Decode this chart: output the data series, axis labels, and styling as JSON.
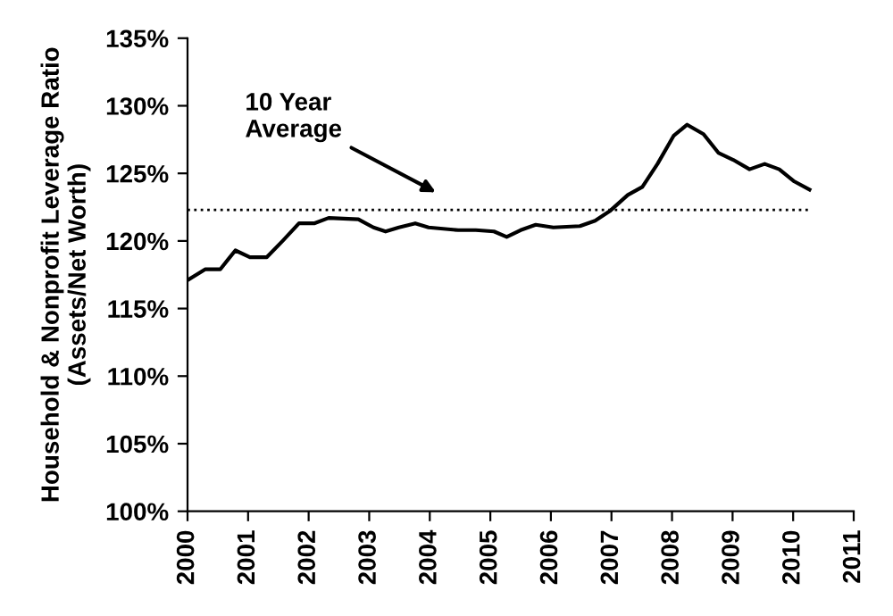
{
  "chart_data": {
    "type": "line",
    "ylabel": "Household & Nonprofit Leverage Ratio\n(Assets/Net Worth)",
    "x": [
      2000.0,
      2000.29,
      2000.54,
      2000.79,
      2001.03,
      2001.31,
      2001.57,
      2001.84,
      2002.09,
      2002.33,
      2002.82,
      2003.07,
      2003.27,
      2003.49,
      2003.76,
      2003.98,
      2004.47,
      2004.76,
      2005.06,
      2005.27,
      2005.5,
      2005.75,
      2006.04,
      2006.48,
      2006.73,
      2006.97,
      2007.27,
      2007.51,
      2007.76,
      2008.03,
      2008.25,
      2008.52,
      2008.77,
      2009.01,
      2009.28,
      2009.53,
      2009.77,
      2010.02,
      2010.27
    ],
    "series": [
      {
        "color": "#000000",
        "values": [
          117.1,
          117.9,
          117.9,
          119.3,
          118.8,
          118.8,
          120.0,
          121.3,
          121.3,
          121.7,
          121.6,
          121.0,
          120.7,
          121.0,
          121.3,
          121.0,
          120.8,
          120.8,
          120.7,
          120.3,
          120.8,
          121.2,
          121.0,
          121.1,
          121.5,
          122.2,
          123.4,
          124.0,
          125.7,
          127.8,
          128.6,
          127.9,
          126.5,
          126.0,
          125.3,
          125.7,
          125.3,
          124.4,
          123.8
        ]
      }
    ],
    "xlim": [
      2000,
      2011
    ],
    "xticks": [
      2000,
      2001,
      2002,
      2003,
      2004,
      2005,
      2006,
      2007,
      2008,
      2009,
      2010,
      2011
    ],
    "ylim": [
      100,
      135
    ],
    "yticks": [
      {
        "value": 100,
        "label": "100%"
      },
      {
        "value": 105,
        "label": "105%"
      },
      {
        "value": 110,
        "label": "110%"
      },
      {
        "value": 115,
        "label": "115%"
      },
      {
        "value": 120,
        "label": "120%"
      },
      {
        "value": 125,
        "label": "125%"
      },
      {
        "value": 130,
        "label": "130%"
      },
      {
        "value": 135,
        "label": "135%"
      }
    ],
    "ref_lines": [
      {
        "axis": "y",
        "value": 122.3,
        "label": "10 Year\nAverage",
        "color": "#000000",
        "line_style": "dotted"
      }
    ],
    "grid": false,
    "legend": false,
    "marker": "none",
    "line_style": "solid"
  }
}
